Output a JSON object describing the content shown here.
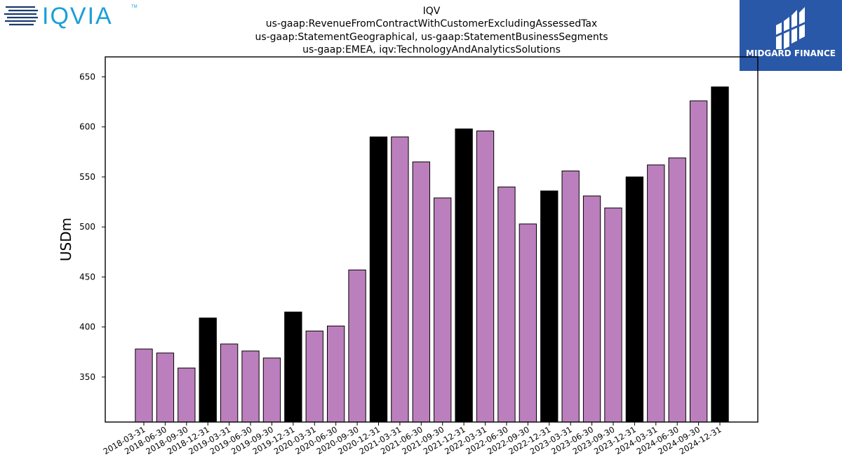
{
  "header": {
    "title_lines": [
      "IQV",
      "us-gaap:RevenueFromContractWithCustomerExcludingAssessedTax",
      "us-gaap:StatementGeographical, us-gaap:StatementBusinessSegments",
      "us-gaap:EMEA, iqv:TechnologyAndAnalyticsSolutions"
    ]
  },
  "logos": {
    "left_text": "IQVIA",
    "left_tm": "TM",
    "right_text": "MIDGARD FINANCE"
  },
  "colors": {
    "quarter_bar": "#bc7fbd",
    "year_end_bar": "#000000",
    "iqvia_teal": "#1aa0d6",
    "iqvia_navy": "#1b3b6f",
    "midgard_bg": "#2a58a8"
  },
  "chart_data": {
    "type": "bar",
    "title": "IQV",
    "xlabel": "",
    "ylabel": "USDm",
    "ylim": [
      305,
      670
    ],
    "yticks": [
      350,
      400,
      450,
      500,
      550,
      600,
      650
    ],
    "grid": false,
    "categories": [
      "2018-03-31",
      "2018-06-30",
      "2018-09-30",
      "2018-12-31",
      "2019-03-31",
      "2019-06-30",
      "2019-09-30",
      "2019-12-31",
      "2020-03-31",
      "2020-06-30",
      "2020-09-30",
      "2020-12-31",
      "2021-03-31",
      "2021-06-30",
      "2021-09-30",
      "2021-12-31",
      "2022-03-31",
      "2022-06-30",
      "2022-09-30",
      "2022-12-31",
      "2023-03-31",
      "2023-06-30",
      "2023-09-30",
      "2023-12-31",
      "2024-03-31",
      "2024-06-30",
      "2024-09-30",
      "2024-12-31"
    ],
    "values": [
      378,
      374,
      359,
      409,
      383,
      376,
      369,
      415,
      396,
      401,
      457,
      590,
      590,
      565,
      529,
      598,
      596,
      540,
      503,
      536,
      556,
      531,
      519,
      550,
      562,
      569,
      626,
      640
    ],
    "year_end": [
      false,
      false,
      false,
      true,
      false,
      false,
      false,
      true,
      false,
      false,
      false,
      true,
      false,
      false,
      false,
      true,
      false,
      false,
      false,
      true,
      false,
      false,
      false,
      true,
      false,
      false,
      false,
      true
    ]
  }
}
